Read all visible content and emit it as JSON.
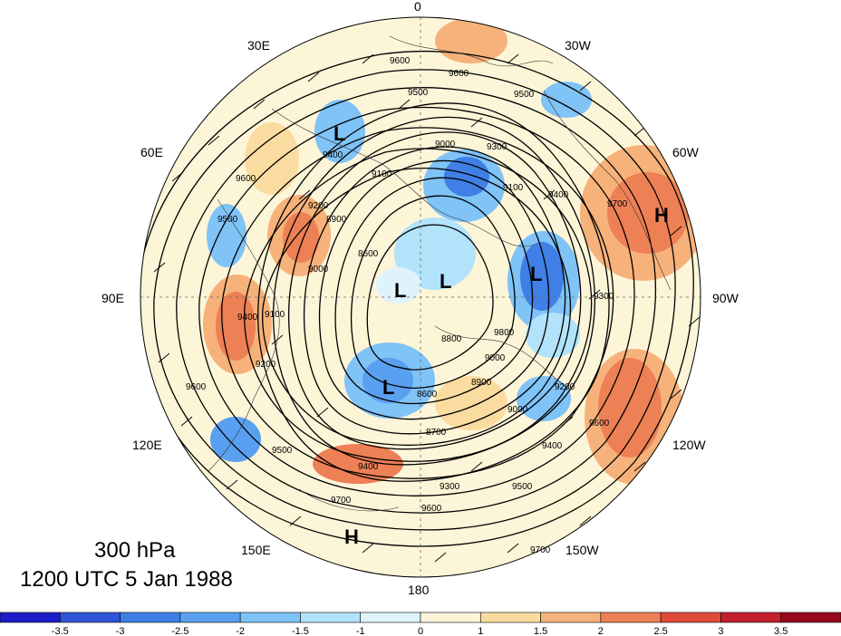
{
  "title_level": "300 hPa",
  "title_time": "1200 UTC 5 Jan 1988",
  "longitude_labels": [
    "0",
    "30W",
    "60W",
    "90W",
    "120W",
    "150W",
    "180",
    "150E",
    "120E",
    "90E",
    "60E",
    "30E"
  ],
  "colorbar": {
    "ticks": [
      "-3.5",
      "-3",
      "-2.5",
      "-2",
      "-1.5",
      "-1",
      "0",
      "1",
      "1.5",
      "2",
      "2.5",
      "3",
      "3.5"
    ],
    "colors": [
      "#1c1cc8",
      "#2f54d8",
      "#3f7fe6",
      "#5aa0f0",
      "#7fc3f7",
      "#b2e3fb",
      "#dff3fd",
      "#fdf5d8",
      "#fbdca0",
      "#f6b27a",
      "#ee8055",
      "#e04a3a",
      "#c2202a",
      "#97091b"
    ]
  },
  "contour_labels": [
    "9600",
    "9500",
    "9400",
    "9300",
    "9200",
    "9100",
    "9000",
    "8900",
    "8800",
    "8700",
    "8600",
    "9700",
    "9800"
  ],
  "pressure_systems": [
    {
      "label": "L"
    },
    {
      "label": "L"
    },
    {
      "label": "L"
    },
    {
      "label": "L"
    },
    {
      "label": "L"
    },
    {
      "label": "H"
    },
    {
      "label": "H"
    }
  ]
}
